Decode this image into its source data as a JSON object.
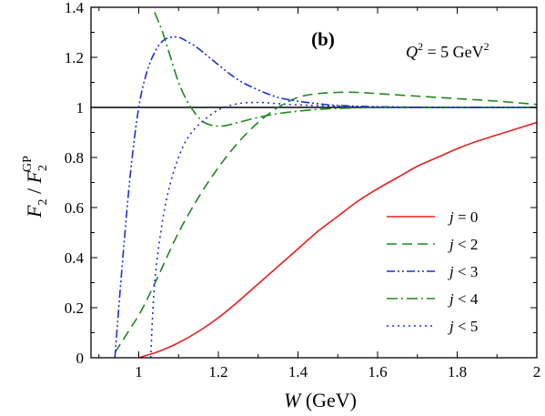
{
  "chart_data": {
    "type": "line",
    "panel_label": "(b)",
    "annotation": {
      "lhs": "Q",
      "sup": "2",
      "rhs": " = 5 GeV",
      "unit_sup": "2"
    },
    "xlabel": {
      "var": "W",
      "unit": " (GeV)"
    },
    "ylabel": {
      "num": "F",
      "num_sub": "2",
      "slash": " / ",
      "den": "F",
      "den_sub": "2",
      "den_sup": "GP"
    },
    "xlim": [
      0.88,
      2.0
    ],
    "ylim": [
      0,
      1.4
    ],
    "xticks": [
      1,
      1.2,
      1.4,
      1.6,
      1.8,
      2
    ],
    "xtick_labels": [
      "1",
      "1.2",
      "1.4",
      "1.6",
      "1.8",
      "2"
    ],
    "yticks": [
      0,
      0.2,
      0.4,
      0.6,
      0.8,
      1,
      1.2,
      1.4
    ],
    "ytick_labels": [
      "0",
      "0.2",
      "0.4",
      "0.6",
      "0.8",
      "1",
      "1.2",
      "1.4"
    ],
    "reference_line": {
      "y": 1,
      "color": "#000000"
    },
    "legend_position": "lower-right",
    "series": [
      {
        "legend": "j = 0",
        "sym": "j",
        "rel": " = 0",
        "color": "#e8201c",
        "dash": "",
        "x": [
          1.0,
          1.02,
          1.05,
          1.1,
          1.15,
          1.2,
          1.25,
          1.3,
          1.35,
          1.4,
          1.45,
          1.5,
          1.55,
          1.6,
          1.65,
          1.7,
          1.75,
          1.8,
          1.85,
          1.9,
          1.95,
          2.0
        ],
        "y": [
          0.0,
          0.01,
          0.025,
          0.06,
          0.105,
          0.16,
          0.225,
          0.295,
          0.365,
          0.435,
          0.505,
          0.565,
          0.625,
          0.675,
          0.72,
          0.765,
          0.8,
          0.835,
          0.865,
          0.89,
          0.915,
          0.94
        ]
      },
      {
        "legend": "j < 2",
        "sym": "j",
        "rel": " < 2",
        "color": "#1a8a1a",
        "dash": "11,6",
        "x": [
          0.94,
          0.96,
          0.98,
          1.0,
          1.02,
          1.05,
          1.1,
          1.15,
          1.2,
          1.25,
          1.3,
          1.35,
          1.4,
          1.45,
          1.5,
          1.55,
          1.6,
          1.7,
          1.8,
          1.9,
          2.0
        ],
        "y": [
          0.02,
          0.07,
          0.12,
          0.17,
          0.23,
          0.33,
          0.5,
          0.64,
          0.76,
          0.86,
          0.94,
          1.0,
          1.04,
          1.055,
          1.06,
          1.06,
          1.055,
          1.045,
          1.035,
          1.025,
          1.012
        ]
      },
      {
        "legend": "j < 3",
        "sym": "j",
        "rel": " < 3",
        "color": "#1c2ee0",
        "dash": "9,3,2,3,2,3",
        "x": [
          0.94,
          0.96,
          0.98,
          1.0,
          1.02,
          1.04,
          1.06,
          1.08,
          1.1,
          1.12,
          1.15,
          1.2,
          1.25,
          1.3,
          1.35,
          1.4,
          1.45,
          1.5,
          1.6,
          1.8,
          2.0
        ],
        "y": [
          0.0,
          0.4,
          0.75,
          1.0,
          1.14,
          1.22,
          1.265,
          1.28,
          1.28,
          1.265,
          1.235,
          1.17,
          1.11,
          1.07,
          1.04,
          1.025,
          1.015,
          1.008,
          1.003,
          1.0,
          1.0
        ]
      },
      {
        "legend": "j < 4",
        "sym": "j",
        "rel": " < 4",
        "color": "#1a8a1a",
        "dash": "12,4,2,4",
        "x": [
          1.04,
          1.06,
          1.08,
          1.1,
          1.12,
          1.14,
          1.16,
          1.18,
          1.2,
          1.22,
          1.25,
          1.3,
          1.35,
          1.4,
          1.45,
          1.5,
          1.6,
          1.7,
          1.8,
          2.0
        ],
        "y": [
          1.38,
          1.3,
          1.2,
          1.1,
          1.03,
          0.98,
          0.945,
          0.93,
          0.925,
          0.928,
          0.94,
          0.96,
          0.975,
          0.985,
          0.992,
          0.996,
          1.0,
          1.0,
          1.0,
          1.0
        ]
      },
      {
        "legend": "j < 5",
        "sym": "j",
        "rel": " < 5",
        "color": "#1c2ee0",
        "dash": "2,4",
        "x": [
          1.03,
          1.04,
          1.06,
          1.08,
          1.1,
          1.12,
          1.15,
          1.2,
          1.25,
          1.3,
          1.35,
          1.4,
          1.5,
          1.6,
          1.8,
          2.0
        ],
        "y": [
          0.0,
          0.3,
          0.55,
          0.7,
          0.8,
          0.87,
          0.93,
          0.99,
          1.015,
          1.02,
          1.015,
          1.01,
          1.005,
          1.0,
          1.0,
          1.0
        ]
      }
    ]
  }
}
